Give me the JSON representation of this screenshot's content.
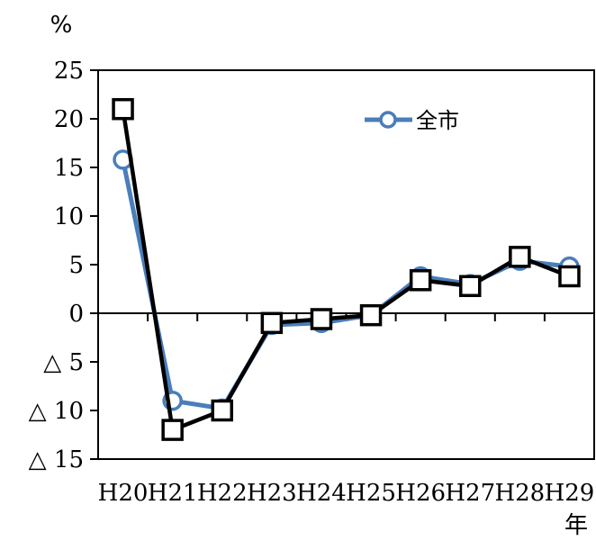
{
  "chart_data": {
    "type": "line",
    "ylabel": "%",
    "xlabel": "年",
    "categories": [
      "H20",
      "H21",
      "H22",
      "H23",
      "H24",
      "H25",
      "H26",
      "H27",
      "H28",
      "H29"
    ],
    "ylim": [
      -15,
      25
    ],
    "yticks": [
      25,
      20,
      15,
      10,
      5,
      0,
      -5,
      -10,
      -15
    ],
    "ytick_labels": [
      "25",
      "20",
      "15",
      "10",
      "5",
      "0",
      "△ 5",
      "△ 10",
      "△ 15"
    ],
    "grid": false,
    "legend_position": "top-right",
    "series": [
      {
        "name": "全市",
        "color": "#4a7ebb",
        "marker": "circle",
        "values": [
          15.8,
          -9.0,
          -9.8,
          -1.2,
          -1.0,
          -0.2,
          3.8,
          3.0,
          5.4,
          4.8
        ]
      },
      {
        "color": "#000000",
        "marker": "square",
        "values": [
          21.0,
          -12.0,
          -10.0,
          -1.0,
          -0.6,
          -0.2,
          3.4,
          2.8,
          5.8,
          3.8
        ]
      }
    ]
  }
}
